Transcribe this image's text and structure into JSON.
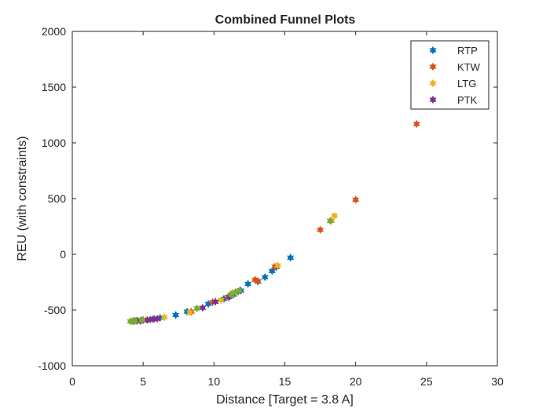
{
  "chart_data": {
    "type": "scatter",
    "title": "Combined Funnel Plots",
    "xlabel": "Distance [Target = 3.8 A]",
    "ylabel": "REU (with constraints)",
    "xlim": [
      0,
      30
    ],
    "ylim": [
      -1000,
      2000
    ],
    "xticks": [
      "0",
      "5",
      "10",
      "15",
      "20",
      "25",
      "30"
    ],
    "yticks": [
      "2000",
      "1500",
      "1000",
      "500",
      "0",
      "-500",
      "-1000"
    ],
    "grid": false,
    "legend_position": "top-right",
    "marker": "hexagram",
    "series": [
      {
        "name": "RTP",
        "color": "#0072BD",
        "points": [
          [
            4.3,
            -600
          ],
          [
            4.6,
            -595
          ],
          [
            5.0,
            -590
          ],
          [
            5.5,
            -585
          ],
          [
            6.2,
            -570
          ],
          [
            7.3,
            -545
          ],
          [
            8.1,
            -515
          ],
          [
            9.6,
            -445
          ],
          [
            10.7,
            -400
          ],
          [
            11.4,
            -360
          ],
          [
            11.9,
            -325
          ],
          [
            12.4,
            -265
          ],
          [
            13.1,
            -245
          ],
          [
            13.6,
            -205
          ],
          [
            14.1,
            -150
          ],
          [
            14.4,
            -115
          ],
          [
            15.4,
            -30
          ]
        ]
      },
      {
        "name": "KTW",
        "color": "#D95319",
        "points": [
          [
            4.5,
            -598
          ],
          [
            5.0,
            -592
          ],
          [
            5.8,
            -578
          ],
          [
            8.4,
            -515
          ],
          [
            9.9,
            -430
          ],
          [
            11.0,
            -385
          ],
          [
            12.9,
            -228
          ],
          [
            13.1,
            -240
          ],
          [
            14.3,
            -110
          ],
          [
            17.5,
            220
          ],
          [
            20.0,
            490
          ],
          [
            24.3,
            1170
          ]
        ]
      },
      {
        "name": "LTG",
        "color": "#EDB120",
        "points": [
          [
            4.2,
            -600
          ],
          [
            4.4,
            -598
          ],
          [
            5.2,
            -588
          ],
          [
            6.5,
            -565
          ],
          [
            8.3,
            -520
          ],
          [
            10.5,
            -410
          ],
          [
            11.3,
            -345
          ],
          [
            14.5,
            -100
          ],
          [
            18.3,
            300
          ],
          [
            18.5,
            345
          ]
        ]
      },
      {
        "name": "PTK",
        "color": "#7E2F8E",
        "points": [
          [
            4.8,
            -598
          ],
          [
            5.3,
            -590
          ],
          [
            5.7,
            -582
          ],
          [
            6.0,
            -578
          ],
          [
            9.2,
            -480
          ],
          [
            10.1,
            -425
          ],
          [
            11.1,
            -380
          ],
          [
            11.7,
            -335
          ]
        ]
      },
      {
        "name": "",
        "color": "#77AC30",
        "points": [
          [
            4.1,
            -602
          ],
          [
            4.4,
            -596
          ],
          [
            4.9,
            -590
          ],
          [
            8.8,
            -485
          ],
          [
            11.2,
            -360
          ],
          [
            11.5,
            -340
          ],
          [
            11.8,
            -325
          ],
          [
            18.2,
            300
          ]
        ]
      }
    ]
  }
}
